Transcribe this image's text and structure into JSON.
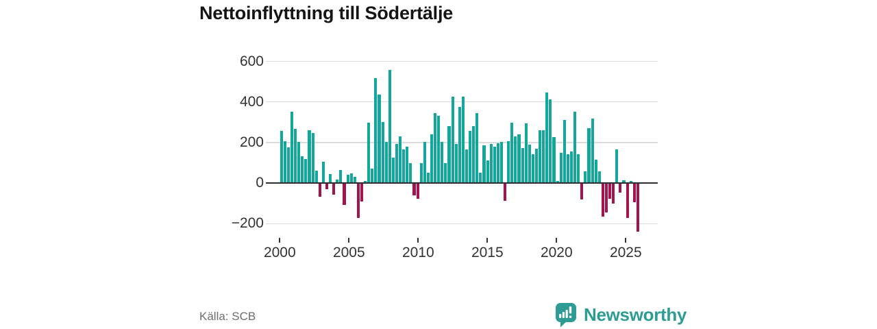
{
  "title": "Nettoinflyttning till Södertälje",
  "source": "Källa: SCB",
  "branding": {
    "name": "Newsworthy",
    "color": "#2d9c94"
  },
  "colors": {
    "positive_bar": "#12a79c",
    "negative_bar": "#a3134e",
    "gridline": "#dcdcdc",
    "zero_axis": "#2e2e2e",
    "axis_text": "#333333"
  },
  "chart_data": {
    "type": "bar",
    "title": "Nettoinflyttning till Södertälje",
    "xlabel": "",
    "ylabel": "",
    "frequency": "quarterly",
    "start_period": "2000-Q1",
    "end_period": "2025-Q3",
    "grid": true,
    "legend": false,
    "ylim": [
      -280,
      640
    ],
    "y_ticks": [
      600,
      400,
      200,
      0,
      -200
    ],
    "y_tick_labels": [
      "600",
      "400",
      "200",
      "0",
      "−200"
    ],
    "x_tick_years": [
      2000,
      2005,
      2010,
      2015,
      2020,
      2025
    ],
    "x_tick_labels": [
      "2000",
      "2005",
      "2010",
      "2015",
      "2020",
      "2025"
    ],
    "series": [
      {
        "name": "Nettoinflyttning",
        "values": [
          255,
          205,
          175,
          350,
          265,
          200,
          130,
          118,
          258,
          247,
          60,
          -65,
          103,
          -30,
          42,
          -55,
          15,
          64,
          -108,
          39,
          47,
          28,
          -172,
          -89,
          10,
          295,
          70,
          515,
          435,
          300,
          200,
          555,
          125,
          190,
          228,
          165,
          177,
          97,
          -60,
          -75,
          95,
          200,
          48,
          238,
          342,
          330,
          200,
          95,
          280,
          425,
          190,
          375,
          425,
          165,
          255,
          280,
          345,
          50,
          185,
          110,
          190,
          178,
          193,
          203,
          -85,
          205,
          295,
          228,
          239,
          171,
          293,
          189,
          141,
          169,
          259,
          258,
          445,
          410,
          226,
          8,
          147,
          309,
          141,
          154,
          351,
          141,
          -79,
          56,
          270,
          315,
          113,
          56,
          -165,
          -145,
          -75,
          -100,
          165,
          -45,
          12,
          -172,
          10,
          -93,
          -240
        ]
      }
    ]
  }
}
